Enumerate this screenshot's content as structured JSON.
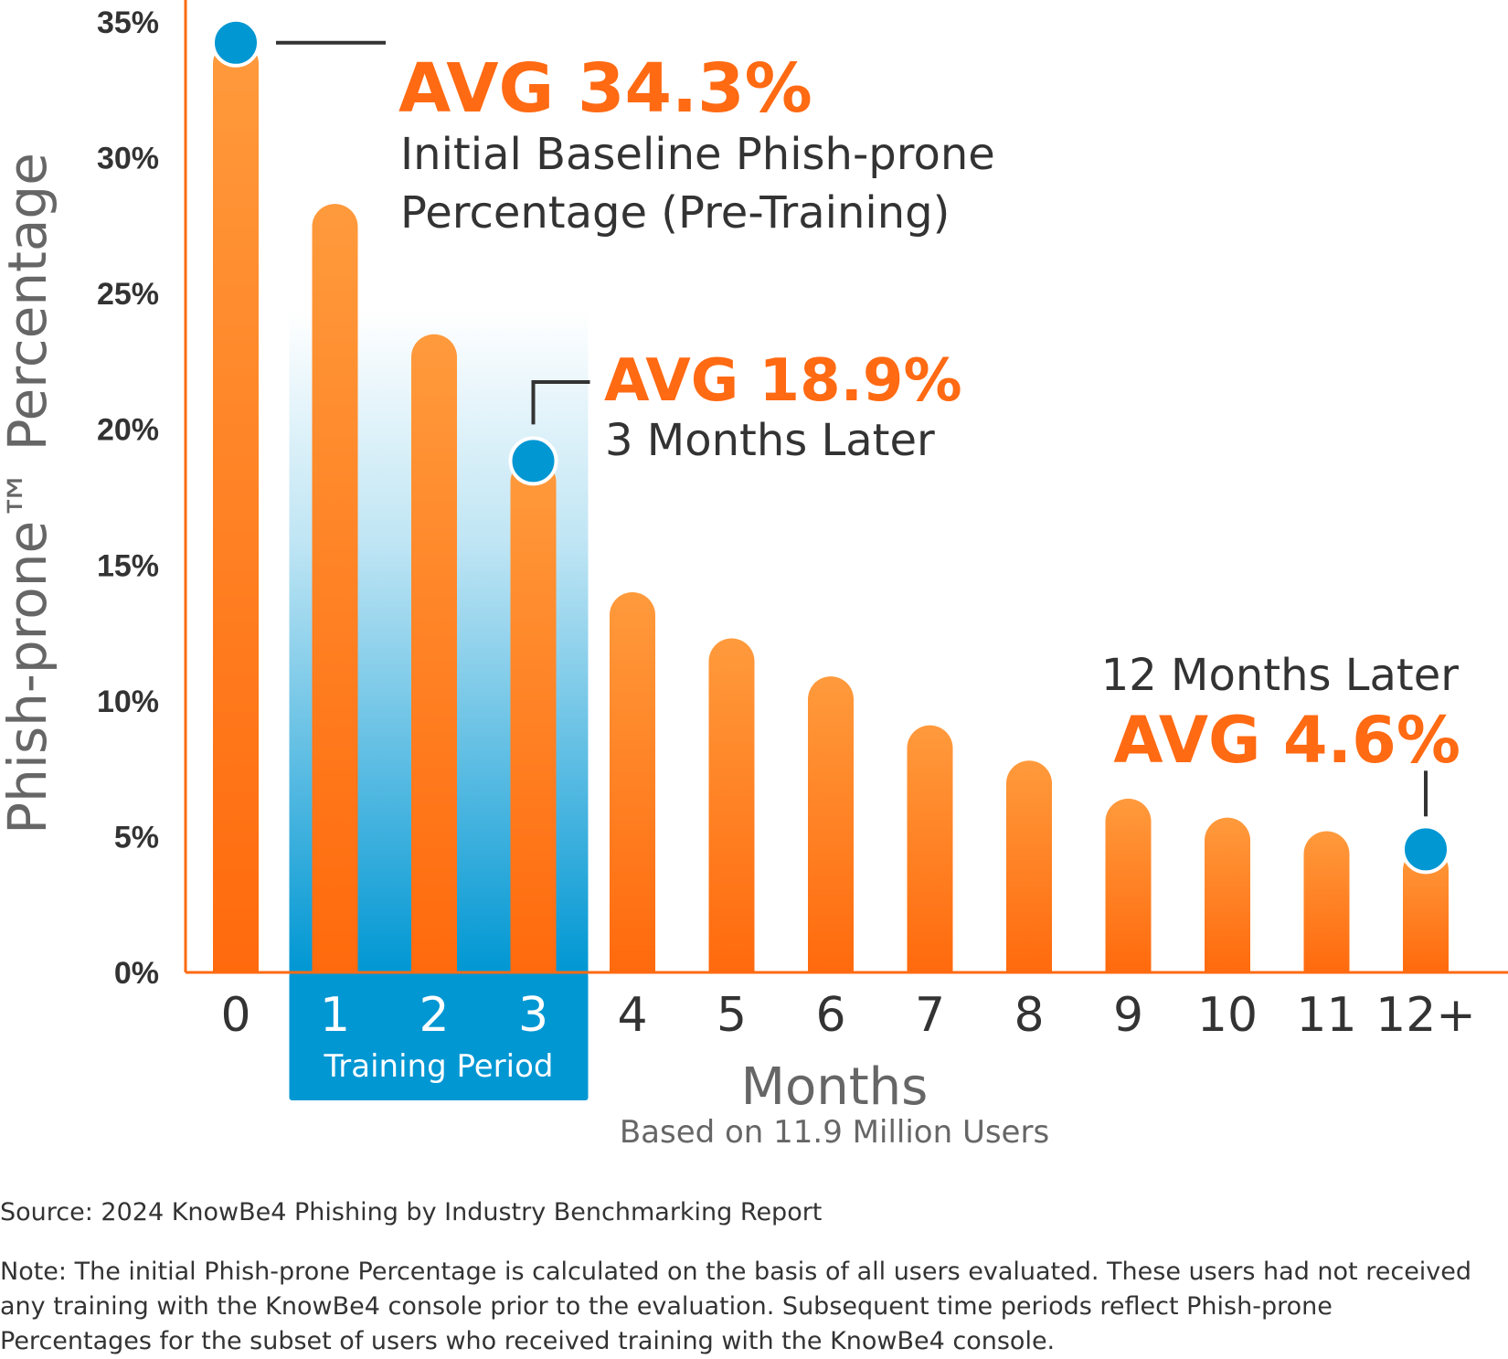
{
  "chart_data": {
    "type": "bar",
    "categories": [
      "0",
      "1",
      "2",
      "3",
      "4",
      "5",
      "6",
      "7",
      "8",
      "9",
      "10",
      "11",
      "12+"
    ],
    "values": [
      34.3,
      28.3,
      23.5,
      18.9,
      14.0,
      12.3,
      10.9,
      9.1,
      7.8,
      6.4,
      5.7,
      5.2,
      4.6
    ],
    "ylim": [
      0,
      35
    ],
    "yticks": [
      "0%",
      "5%",
      "10%",
      "15%",
      "20%",
      "25%",
      "30%",
      "35%"
    ],
    "ylabel": "Phish-prone™ Percentage",
    "xlabel": "Months",
    "xlabel_sub": "Based on 11.9 Million Users",
    "shaded_band": {
      "label": "Training Period",
      "from": "1",
      "to": "3"
    },
    "annotations": [
      {
        "category": "0",
        "headline": "AVG 34.3%",
        "lines": [
          "Initial Baseline Phish-prone",
          "Percentage (Pre-Training)"
        ]
      },
      {
        "category": "3",
        "headline": "AVG 18.9%",
        "lines": [
          "3 Months Later"
        ]
      },
      {
        "category": "12+",
        "headline": "AVG 4.6%",
        "lines": [
          "12 Months Later"
        ]
      }
    ],
    "grid": false
  },
  "colors": {
    "bar_top": "#ff9a3c",
    "bar_bottom": "#ff6a0d",
    "accent_orange": "#ff6a13",
    "marker_blue": "#0097d3",
    "band_blue": "#0097d3",
    "text_dark": "#333333",
    "text_gray": "#666666"
  },
  "footer": {
    "source": "Source: 2024 KnowBe4 Phishing by Industry Benchmarking Report",
    "note": "Note: The initial Phish-prone Percentage is calculated on the basis of all users evaluated. These users had not received any training with the KnowBe4 console prior to the evaluation. Subsequent time periods reflect Phish-prone Percentages for the subset of users who received training with the KnowBe4 console."
  }
}
